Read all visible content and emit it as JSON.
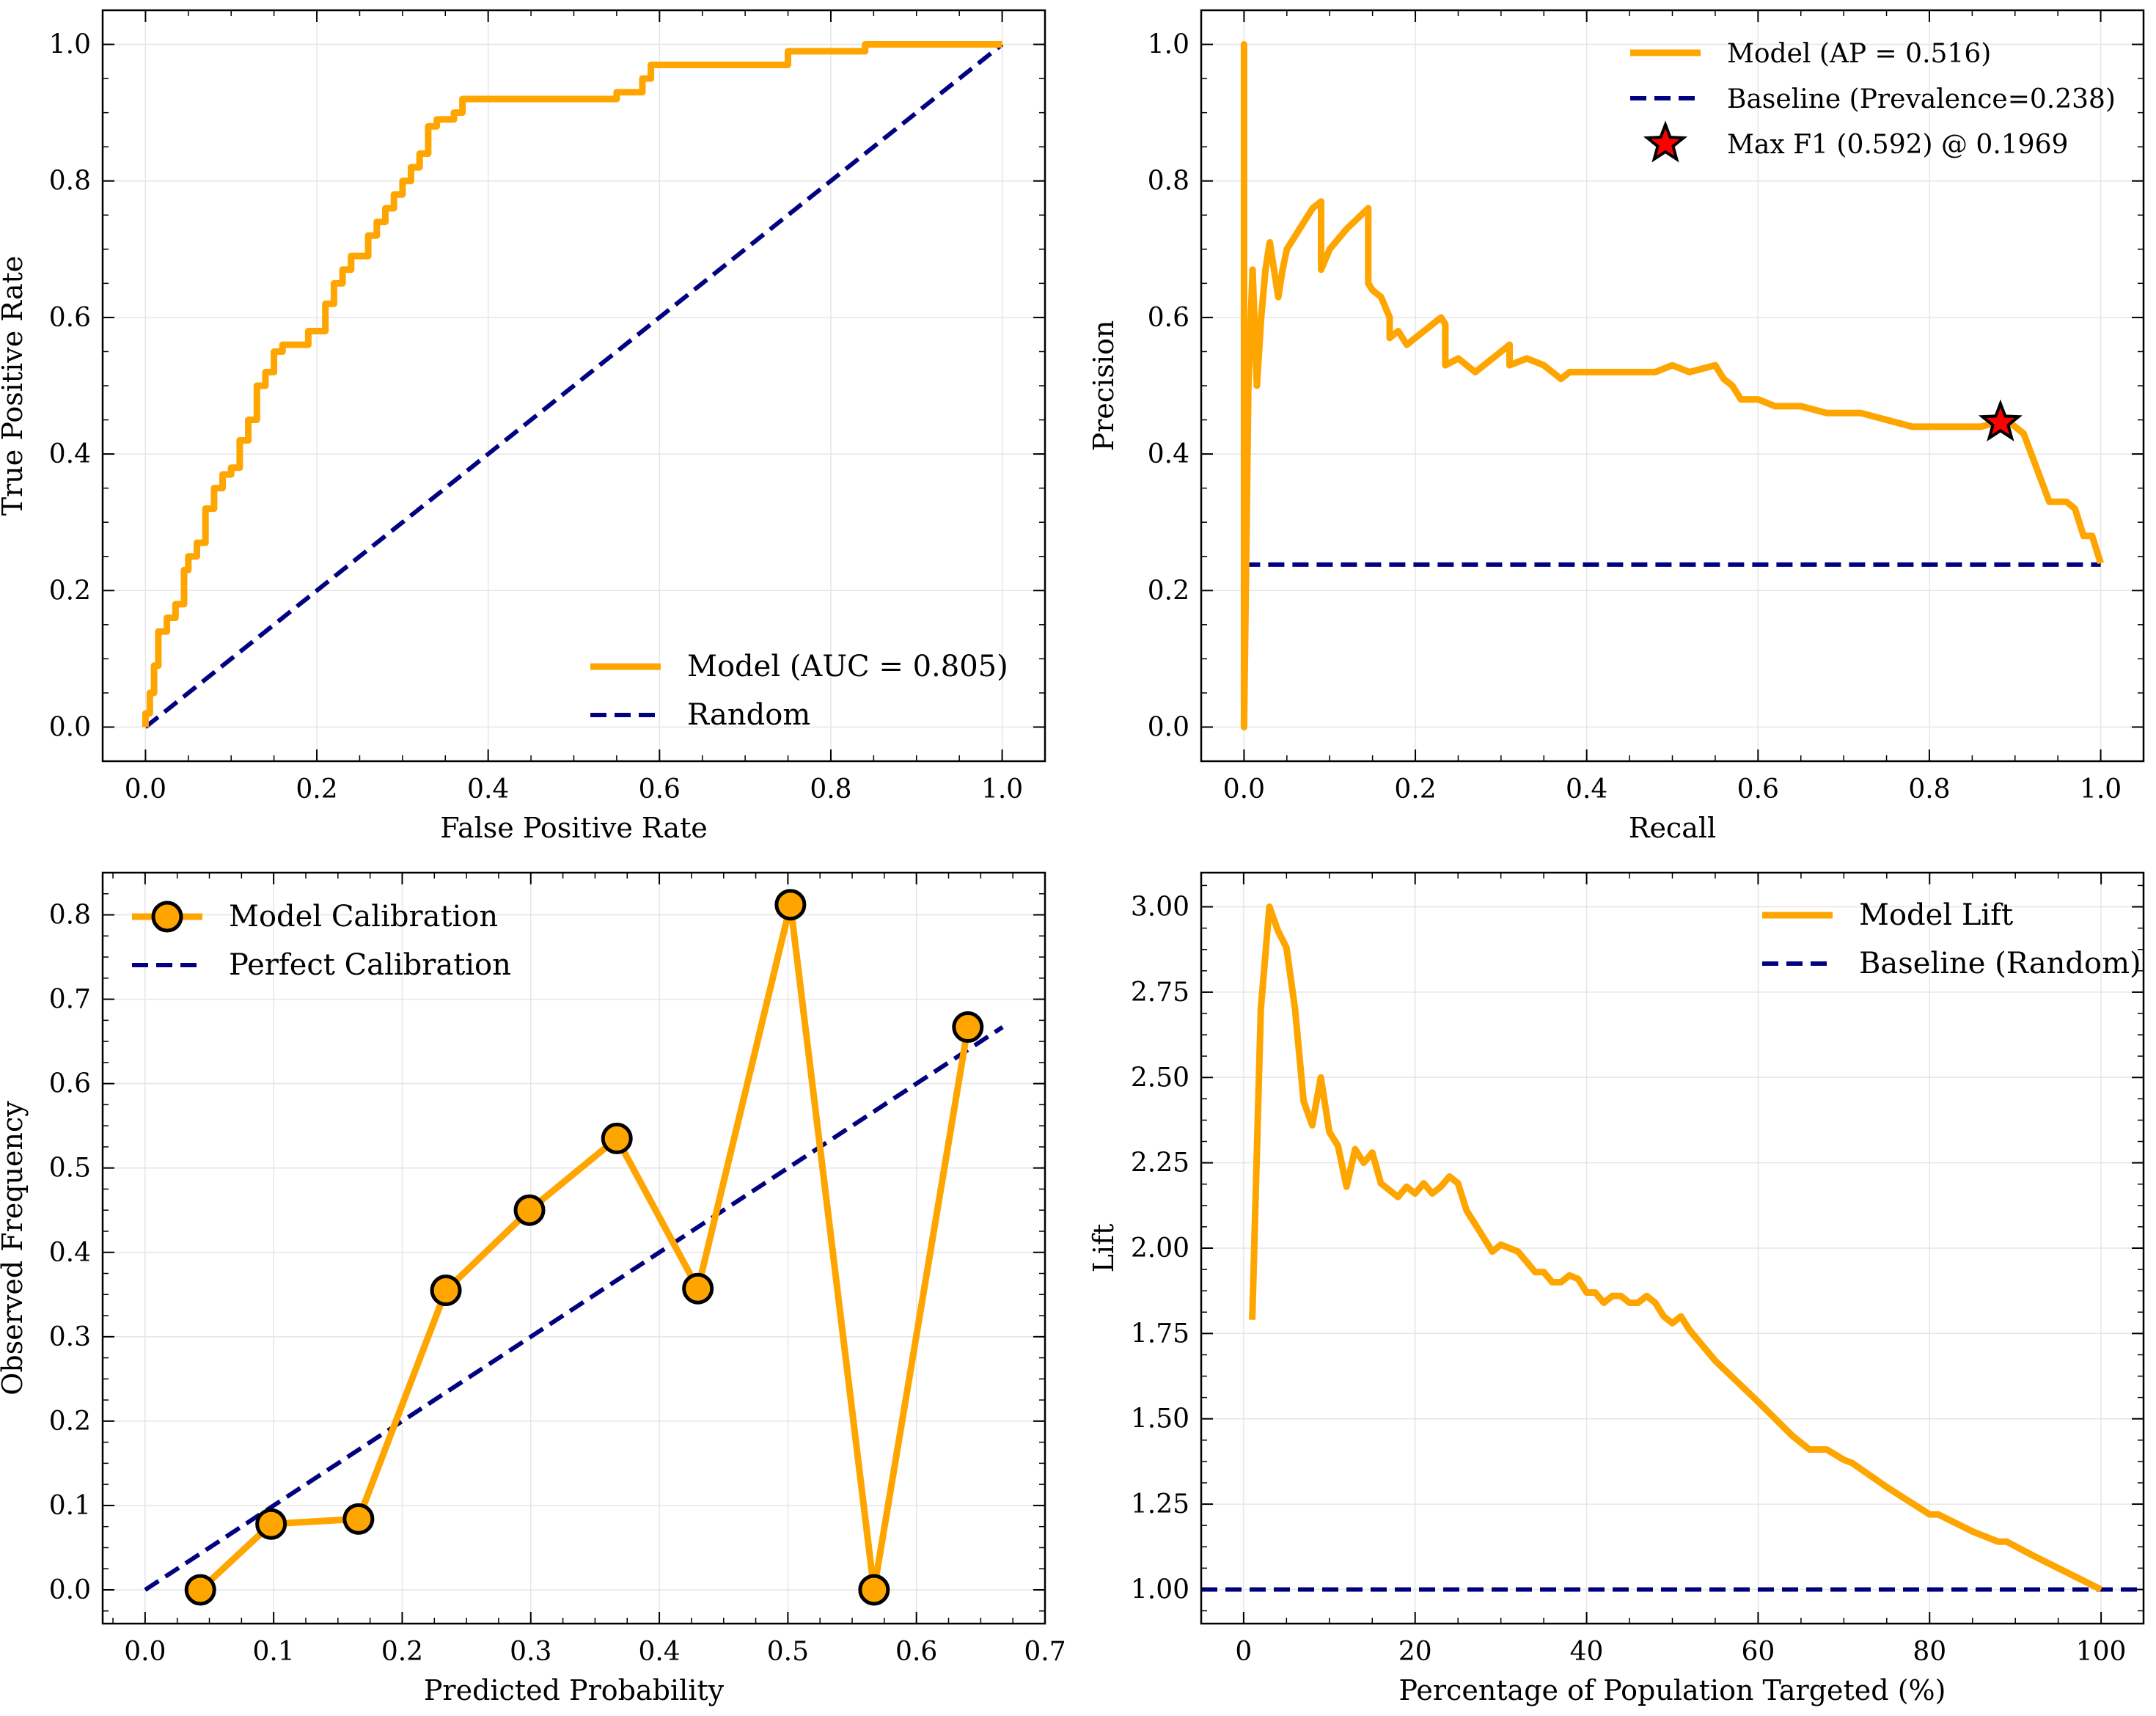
{
  "colors": {
    "model": "#FFA500",
    "baseline": "#000080",
    "marker_fill": "#FFA500",
    "star_fill": "#FF0000",
    "grid": "#e6e6e6"
  },
  "chart_data": [
    {
      "type": "line",
      "id": "roc",
      "xlabel": "False Positive Rate",
      "ylabel": "True Positive Rate",
      "xlim": [
        -0.05,
        1.05
      ],
      "ylim": [
        -0.05,
        1.05
      ],
      "xticks": [
        0.0,
        0.2,
        0.4,
        0.6,
        0.8,
        1.0
      ],
      "yticks": [
        0.0,
        0.2,
        0.4,
        0.6,
        0.8,
        1.0
      ],
      "tick_labels_x": [
        "0.0",
        "0.2",
        "0.4",
        "0.6",
        "0.8",
        "1.0"
      ],
      "tick_labels_y": [
        "0.0",
        "0.2",
        "0.4",
        "0.6",
        "0.8",
        "1.0"
      ],
      "grid": true,
      "legend_position": "lower right",
      "series": [
        {
          "name": "Model (AUC = 0.805)",
          "style": "solid",
          "x": [
            0.0,
            0.0,
            0.005,
            0.005,
            0.01,
            0.01,
            0.015,
            0.015,
            0.025,
            0.025,
            0.035,
            0.035,
            0.045,
            0.045,
            0.05,
            0.05,
            0.06,
            0.06,
            0.07,
            0.07,
            0.08,
            0.08,
            0.09,
            0.09,
            0.1,
            0.1,
            0.11,
            0.11,
            0.12,
            0.12,
            0.13,
            0.13,
            0.14,
            0.14,
            0.15,
            0.15,
            0.16,
            0.16,
            0.17,
            0.17,
            0.19,
            0.19,
            0.21,
            0.21,
            0.22,
            0.22,
            0.23,
            0.23,
            0.24,
            0.24,
            0.26,
            0.26,
            0.27,
            0.27,
            0.28,
            0.28,
            0.29,
            0.29,
            0.3,
            0.3,
            0.31,
            0.31,
            0.32,
            0.32,
            0.33,
            0.33,
            0.34,
            0.34,
            0.36,
            0.36,
            0.37,
            0.37,
            0.38,
            0.38,
            0.55,
            0.55,
            0.58,
            0.58,
            0.59,
            0.59,
            0.62,
            0.62,
            0.75,
            0.75,
            0.84,
            0.84,
            1.0
          ],
          "y": [
            0.0,
            0.02,
            0.02,
            0.05,
            0.05,
            0.09,
            0.09,
            0.14,
            0.14,
            0.16,
            0.16,
            0.18,
            0.18,
            0.23,
            0.23,
            0.25,
            0.25,
            0.27,
            0.27,
            0.32,
            0.32,
            0.35,
            0.35,
            0.37,
            0.37,
            0.38,
            0.38,
            0.42,
            0.42,
            0.45,
            0.45,
            0.5,
            0.5,
            0.52,
            0.52,
            0.55,
            0.55,
            0.56,
            0.56,
            0.56,
            0.56,
            0.58,
            0.58,
            0.62,
            0.62,
            0.65,
            0.65,
            0.67,
            0.67,
            0.69,
            0.69,
            0.72,
            0.72,
            0.74,
            0.74,
            0.76,
            0.76,
            0.78,
            0.78,
            0.8,
            0.8,
            0.82,
            0.82,
            0.84,
            0.84,
            0.88,
            0.88,
            0.89,
            0.89,
            0.9,
            0.9,
            0.92,
            0.92,
            0.92,
            0.92,
            0.93,
            0.93,
            0.95,
            0.95,
            0.97,
            0.97,
            0.97,
            0.97,
            0.99,
            0.99,
            1.0,
            1.0
          ]
        },
        {
          "name": "Random",
          "style": "dashed",
          "x": [
            0.0,
            1.0
          ],
          "y": [
            0.0,
            1.0
          ]
        }
      ]
    },
    {
      "type": "line",
      "id": "pr",
      "xlabel": "Recall",
      "ylabel": "Precision",
      "xlim": [
        -0.05,
        1.05
      ],
      "ylim": [
        -0.05,
        1.05
      ],
      "xticks": [
        0.0,
        0.2,
        0.4,
        0.6,
        0.8,
        1.0
      ],
      "yticks": [
        0.0,
        0.2,
        0.4,
        0.6,
        0.8,
        1.0
      ],
      "tick_labels_x": [
        "0.0",
        "0.2",
        "0.4",
        "0.6",
        "0.8",
        "1.0"
      ],
      "tick_labels_y": [
        "0.0",
        "0.2",
        "0.4",
        "0.6",
        "0.8",
        "1.0"
      ],
      "grid": true,
      "legend_position": "upper right",
      "series": [
        {
          "name": "Model (AP = 0.516)",
          "style": "solid",
          "x": [
            0.0,
            0.0,
            0.0,
            0.005,
            0.01,
            0.015,
            0.02,
            0.025,
            0.03,
            0.04,
            0.045,
            0.05,
            0.06,
            0.07,
            0.08,
            0.09,
            0.09,
            0.1,
            0.12,
            0.145,
            0.145,
            0.15,
            0.16,
            0.17,
            0.17,
            0.18,
            0.19,
            0.2,
            0.21,
            0.22,
            0.23,
            0.235,
            0.235,
            0.25,
            0.26,
            0.27,
            0.28,
            0.3,
            0.31,
            0.31,
            0.33,
            0.35,
            0.36,
            0.37,
            0.38,
            0.4,
            0.42,
            0.45,
            0.48,
            0.5,
            0.52,
            0.55,
            0.56,
            0.57,
            0.58,
            0.6,
            0.62,
            0.65,
            0.68,
            0.72,
            0.75,
            0.78,
            0.82,
            0.86,
            0.89,
            0.91,
            0.91,
            0.94,
            0.96,
            0.97,
            0.98,
            0.99,
            1.0
          ],
          "y": [
            0.0,
            1.0,
            0.0,
            0.5,
            0.67,
            0.5,
            0.6,
            0.67,
            0.71,
            0.63,
            0.67,
            0.7,
            0.72,
            0.74,
            0.76,
            0.77,
            0.67,
            0.7,
            0.73,
            0.76,
            0.65,
            0.64,
            0.63,
            0.6,
            0.57,
            0.58,
            0.56,
            0.57,
            0.58,
            0.59,
            0.6,
            0.59,
            0.53,
            0.54,
            0.53,
            0.52,
            0.53,
            0.55,
            0.56,
            0.53,
            0.54,
            0.53,
            0.52,
            0.51,
            0.52,
            0.52,
            0.52,
            0.52,
            0.52,
            0.53,
            0.52,
            0.53,
            0.51,
            0.5,
            0.48,
            0.48,
            0.47,
            0.47,
            0.46,
            0.46,
            0.45,
            0.44,
            0.44,
            0.44,
            0.45,
            0.43,
            0.43,
            0.33,
            0.33,
            0.32,
            0.28,
            0.28,
            0.24
          ]
        },
        {
          "name": "Baseline (Prevalence=0.238)",
          "style": "dashed",
          "x": [
            0.0,
            1.0
          ],
          "y": [
            0.238,
            0.238
          ]
        },
        {
          "name": "Max F1 (0.592) @ 0.1969",
          "style": "marker-star",
          "x": [
            0.883
          ],
          "y": [
            0.446
          ]
        }
      ]
    },
    {
      "type": "line",
      "id": "calibration",
      "xlabel": "Predicted Probability",
      "ylabel": "Observed Frequency",
      "xlim": [
        -0.033,
        0.7
      ],
      "ylim": [
        -0.04,
        0.85
      ],
      "xticks": [
        0.0,
        0.1,
        0.2,
        0.3,
        0.4,
        0.5,
        0.6,
        0.7
      ],
      "yticks": [
        0.0,
        0.1,
        0.2,
        0.3,
        0.4,
        0.5,
        0.6,
        0.7,
        0.8
      ],
      "tick_labels_x": [
        "0.0",
        "0.1",
        "0.2",
        "0.3",
        "0.4",
        "0.5",
        "0.6",
        "0.7"
      ],
      "tick_labels_y": [
        "0.0",
        "0.1",
        "0.2",
        "0.3",
        "0.4",
        "0.5",
        "0.6",
        "0.7",
        "0.8"
      ],
      "grid": true,
      "legend_position": "upper left",
      "series": [
        {
          "name": "Model Calibration",
          "style": "solid-markers",
          "x": [
            0.043,
            0.098,
            0.166,
            0.234,
            0.299,
            0.367,
            0.43,
            0.502,
            0.567,
            0.64
          ],
          "y": [
            0.0,
            0.078,
            0.084,
            0.355,
            0.45,
            0.535,
            0.357,
            0.812,
            0.0,
            0.667
          ]
        },
        {
          "name": "Perfect Calibration",
          "style": "dashed",
          "x": [
            0.0,
            0.667
          ],
          "y": [
            0.0,
            0.667
          ]
        }
      ]
    },
    {
      "type": "line",
      "id": "lift",
      "xlabel": "Percentage of Population Targeted (%)",
      "ylabel": "Lift",
      "xlim": [
        -4.95,
        104.95
      ],
      "ylim": [
        0.9,
        3.1
      ],
      "xticks": [
        0,
        20,
        40,
        60,
        80,
        100
      ],
      "yticks": [
        1.0,
        1.25,
        1.5,
        1.75,
        2.0,
        2.25,
        2.5,
        2.75,
        3.0
      ],
      "tick_labels_x": [
        "0",
        "20",
        "40",
        "60",
        "80",
        "100"
      ],
      "tick_labels_y": [
        "1.00",
        "1.25",
        "1.50",
        "1.75",
        "2.00",
        "2.25",
        "2.50",
        "2.75",
        "3.00"
      ],
      "grid": true,
      "legend_position": "upper right",
      "series": [
        {
          "name": "Model Lift",
          "style": "solid",
          "x": [
            1,
            2,
            3,
            4,
            5,
            6,
            7,
            8,
            9,
            10,
            11,
            12,
            13,
            14,
            15,
            16,
            17,
            18,
            19,
            20,
            21,
            22,
            23,
            24,
            25,
            26,
            27,
            28,
            29,
            30,
            31,
            32,
            33,
            34,
            35,
            36,
            37,
            38,
            39,
            40,
            41,
            42,
            43,
            44,
            45,
            46,
            47,
            48,
            49,
            50,
            51,
            52,
            55,
            60,
            64,
            65,
            66,
            68,
            70,
            71,
            75,
            80,
            81,
            85,
            88,
            89,
            92,
            96,
            100
          ],
          "y": [
            1.79,
            2.7,
            3.0,
            2.93,
            2.88,
            2.7,
            2.43,
            2.36,
            2.5,
            2.34,
            2.3,
            2.18,
            2.29,
            2.25,
            2.28,
            2.19,
            2.17,
            2.15,
            2.18,
            2.16,
            2.19,
            2.16,
            2.18,
            2.21,
            2.19,
            2.11,
            2.07,
            2.03,
            1.99,
            2.01,
            2.0,
            1.99,
            1.96,
            1.93,
            1.93,
            1.9,
            1.9,
            1.92,
            1.91,
            1.87,
            1.87,
            1.84,
            1.86,
            1.86,
            1.84,
            1.84,
            1.86,
            1.84,
            1.8,
            1.78,
            1.8,
            1.76,
            1.67,
            1.55,
            1.45,
            1.43,
            1.41,
            1.41,
            1.38,
            1.37,
            1.3,
            1.22,
            1.22,
            1.17,
            1.14,
            1.14,
            1.1,
            1.05,
            1.0
          ]
        },
        {
          "name": "Baseline (Random)",
          "style": "dashed",
          "x": [
            -4.95,
            104.95
          ],
          "y": [
            1.0,
            1.0
          ]
        }
      ]
    }
  ]
}
